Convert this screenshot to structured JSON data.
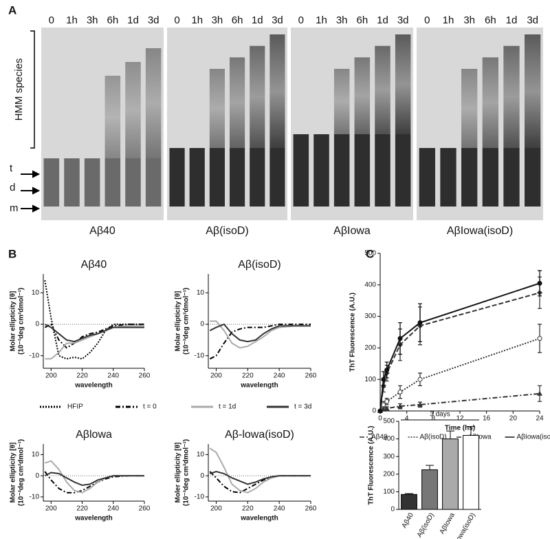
{
  "figure": {
    "panel_letters": [
      "A",
      "B",
      "C"
    ],
    "lanes": [
      "0",
      "1h",
      "3h",
      "6h",
      "1d",
      "3d"
    ],
    "hmm_label": "HMM species",
    "band_labels": [
      "t",
      "d",
      "m"
    ],
    "blots": [
      "Aβ40",
      "Aβ(isoD)",
      "AβIowa",
      "AβIowa(isoD)"
    ]
  },
  "chart_data": [
    {
      "type": "line",
      "title": "Aβ40",
      "ylabel": [
        "Molar ellipticity [θ]",
        "(10⁻³deg cm²dmol⁻¹)"
      ],
      "xlabel": "wavelength",
      "x": [
        196,
        200,
        205,
        210,
        215,
        220,
        225,
        230,
        235,
        240,
        250,
        260
      ],
      "xlim": [
        195,
        260
      ],
      "xticks": [
        200,
        220,
        240,
        260
      ],
      "ylim": [
        -14,
        16
      ],
      "yticks": [
        -10,
        0,
        10
      ],
      "zero_line": true,
      "series": [
        {
          "name": "HFIP",
          "color": "#000000",
          "style": "dotted",
          "values": [
            14,
            2,
            -10,
            -11,
            -10.5,
            -11,
            -9,
            -6,
            -2,
            0,
            0,
            0
          ]
        },
        {
          "name": "t = 0",
          "color": "#000000",
          "style": "dash-dot",
          "values": [
            -1,
            0,
            -5,
            -7.5,
            -6,
            -4,
            -3,
            -2.5,
            -1.5,
            -0.5,
            0,
            0
          ]
        },
        {
          "name": "t = 1d",
          "color": "#aaaaaa",
          "style": "solid",
          "values": [
            -11,
            -11,
            -9,
            -6,
            -6,
            -5,
            -4,
            -3,
            -2,
            -1,
            -0.5,
            -0.5
          ]
        },
        {
          "name": "t = 3d",
          "color": "#333333",
          "style": "solid",
          "values": [
            0,
            -1,
            -3,
            -5,
            -5.5,
            -4.5,
            -3.5,
            -3,
            -2,
            -1,
            -1,
            -1
          ]
        }
      ]
    },
    {
      "type": "line",
      "title": "Aβ(isoD)",
      "ylabel": [
        "Molar ellipticity [θ]",
        "(10⁻³deg cm²dmol⁻¹)"
      ],
      "xlabel": "wavelength",
      "x": [
        196,
        200,
        205,
        210,
        215,
        220,
        225,
        230,
        235,
        240,
        250,
        260
      ],
      "xlim": [
        195,
        260
      ],
      "xticks": [
        200,
        220,
        240,
        260
      ],
      "ylim": [
        -14,
        16
      ],
      "yticks": [
        -10,
        0,
        10
      ],
      "zero_line": true,
      "series": [
        {
          "name": "t = 0",
          "color": "#000000",
          "style": "dash-dot",
          "values": [
            -11,
            -10,
            -6,
            -2.5,
            -1.5,
            -1,
            -1,
            -1,
            -0.5,
            0,
            0,
            0
          ]
        },
        {
          "name": "t = 1d",
          "color": "#aaaaaa",
          "style": "solid",
          "values": [
            1,
            1,
            -2,
            -6,
            -7.5,
            -7,
            -5.5,
            -4,
            -2,
            -1,
            -0.5,
            -0.5
          ]
        },
        {
          "name": "t = 3d",
          "color": "#333333",
          "style": "solid",
          "values": [
            -2,
            -1,
            0,
            -3,
            -5,
            -5.5,
            -5,
            -3,
            -1.5,
            -0.5,
            -0.5,
            -0.5
          ]
        }
      ]
    },
    {
      "type": "line",
      "title": "Aβlowa",
      "ylabel": [
        "Molar ellipticity [θ]",
        "(10⁻³deg cm²dmol⁻¹)"
      ],
      "xlabel": "wavelength",
      "x": [
        196,
        200,
        205,
        210,
        215,
        220,
        225,
        230,
        235,
        240,
        250,
        260
      ],
      "xlim": [
        195,
        260
      ],
      "xticks": [
        200,
        220,
        240,
        260
      ],
      "ylim": [
        -12,
        15
      ],
      "yticks": [
        -10,
        0,
        10
      ],
      "zero_line": true,
      "series": [
        {
          "name": "t = 0",
          "color": "#000000",
          "style": "dash-dot",
          "values": [
            2,
            -2,
            -6,
            -8,
            -8,
            -7,
            -5,
            -3,
            -1.5,
            -0.5,
            0,
            0
          ]
        },
        {
          "name": "t = 1d",
          "color": "#aaaaaa",
          "style": "solid",
          "values": [
            6,
            7,
            3,
            -3,
            -7,
            -8,
            -6,
            -3,
            -1,
            0,
            0,
            0
          ]
        },
        {
          "name": "t = 3d",
          "color": "#333333",
          "style": "solid",
          "values": [
            0,
            1.5,
            1,
            -1,
            -3,
            -4.5,
            -4,
            -2,
            -1,
            0,
            0,
            0
          ]
        }
      ]
    },
    {
      "type": "line",
      "title": "Aβ-lowa(isoD)",
      "ylabel": [
        "Moler ellipticity [θ]",
        "(10⁻³deg cm²dmol⁻¹)"
      ],
      "xlabel": "wavelength",
      "x": [
        196,
        200,
        205,
        210,
        215,
        220,
        225,
        230,
        235,
        240,
        250,
        260
      ],
      "xlim": [
        195,
        260
      ],
      "xticks": [
        200,
        220,
        240,
        260
      ],
      "ylim": [
        -12,
        15
      ],
      "yticks": [
        -10,
        0,
        10
      ],
      "zero_line": true,
      "series": [
        {
          "name": "t = 0",
          "color": "#000000",
          "style": "dash-dot",
          "values": [
            2,
            -1,
            -5,
            -7.5,
            -8,
            -6,
            -4,
            -2,
            -1,
            0,
            0,
            0
          ]
        },
        {
          "name": "t = 1d",
          "color": "#aaaaaa",
          "style": "solid",
          "values": [
            13,
            11,
            4,
            -4,
            -7,
            -8,
            -6,
            -3,
            -1,
            0,
            0,
            0
          ]
        },
        {
          "name": "t = 3d",
          "color": "#333333",
          "style": "solid",
          "values": [
            1,
            2,
            1,
            -1,
            -2.5,
            -4,
            -3,
            -1.5,
            -0.5,
            0,
            0,
            0
          ]
        }
      ]
    },
    {
      "type": "line",
      "xlabel": "Time (hs)",
      "ylabel": [
        "ThT Fluorescence (A.U.)"
      ],
      "x": [
        0,
        0.5,
        1,
        3,
        6,
        24
      ],
      "xlim": [
        0,
        24
      ],
      "xticks": [
        0,
        4,
        8,
        12,
        16,
        20,
        24
      ],
      "ylim": [
        0,
        500
      ],
      "yticks": [
        0,
        100,
        200,
        300,
        400,
        500
      ],
      "legend": "bottom",
      "series": [
        {
          "name": "Aβ40",
          "color": "#333333",
          "style": "dash-dot",
          "marker": "triangle",
          "values": [
            0,
            5,
            8,
            15,
            20,
            55
          ],
          "errors": [
            0,
            5,
            5,
            8,
            8,
            25
          ]
        },
        {
          "name": "Aβ(isoD)",
          "color": "#333333",
          "style": "dotted",
          "marker": "circle-open",
          "values": [
            0,
            20,
            30,
            60,
            100,
            230
          ],
          "errors": [
            0,
            10,
            10,
            20,
            20,
            45
          ]
        },
        {
          "name": "AβIowa",
          "color": "#333333",
          "style": "dashed",
          "marker": "diamond",
          "values": [
            0,
            80,
            120,
            210,
            270,
            375
          ],
          "errors": [
            0,
            20,
            25,
            50,
            60,
            50
          ]
        },
        {
          "name": "AβIowa(isoD)",
          "color": "#111111",
          "style": "solid",
          "marker": "circle",
          "values": [
            0,
            100,
            130,
            230,
            280,
            405
          ],
          "errors": [
            0,
            25,
            25,
            50,
            60,
            40
          ]
        }
      ]
    },
    {
      "type": "bar",
      "ylabel": [
        "ThT Fluorescence (A.U.)"
      ],
      "annotation": "3 days",
      "categories": [
        "Aβ40",
        "Aβ(isoD)",
        "AβIowa",
        "AβIowa(isoD)"
      ],
      "values": [
        85,
        225,
        400,
        420
      ],
      "errors": [
        5,
        25,
        45,
        50
      ],
      "colors": [
        "#333333",
        "#777777",
        "#aaaaaa",
        "#ffffff"
      ],
      "ylim": [
        0,
        500
      ],
      "yticks": [
        0,
        100,
        200,
        300,
        400,
        500
      ]
    }
  ]
}
